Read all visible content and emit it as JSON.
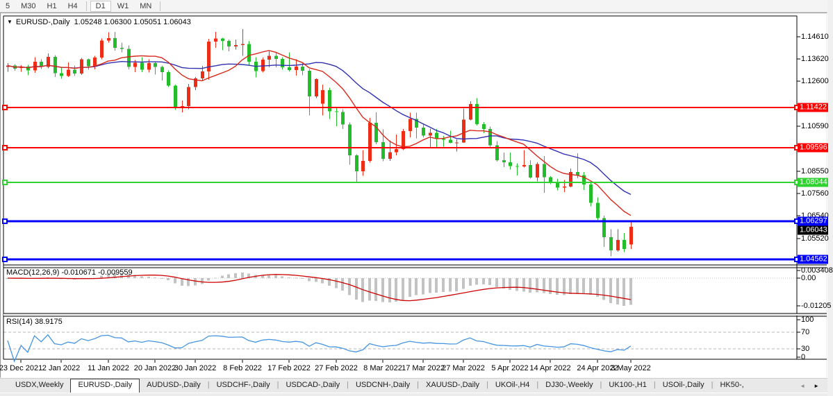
{
  "toolbar": {
    "active": "D1",
    "groups": [
      [
        "5",
        "M30",
        "H1",
        "H4"
      ],
      [
        "D1",
        "W1",
        "MN"
      ]
    ]
  },
  "chart": {
    "caret": "▼",
    "title_symbol": "EURUSD-,Daily",
    "title_ohlc": "1.05248 1.06300 1.05051 1.06043",
    "current_price": "1.06043"
  },
  "chart_data": {
    "type": "candlestick",
    "symbol": "EURUSD",
    "period": "Daily",
    "date_range": [
      "23 Dec 2021",
      "3 May 2022"
    ],
    "price_axis_ticks": [
      "1.14610",
      "1.13620",
      "1.12600",
      "1.10590",
      "1.08550",
      "1.07560",
      "1.06540",
      "1.05520"
    ],
    "x_ticks": [
      {
        "label": "23 Dec 2021",
        "bar": 2
      },
      {
        "label": "2 Jan 2022",
        "bar": 8
      },
      {
        "label": "11 Jan 2022",
        "bar": 15
      },
      {
        "label": "20 Jan 2022",
        "bar": 22
      },
      {
        "label": "30 Jan 2022",
        "bar": 28
      },
      {
        "label": "8 Feb 2022",
        "bar": 35
      },
      {
        "label": "17 Feb 2022",
        "bar": 42
      },
      {
        "label": "27 Feb 2022",
        "bar": 49
      },
      {
        "label": "8 Mar 2022",
        "bar": 56
      },
      {
        "label": "17 Mar 2022",
        "bar": 62
      },
      {
        "label": "27 Mar 2022",
        "bar": 68
      },
      {
        "label": "5 Apr 2022",
        "bar": 75
      },
      {
        "label": "14 Apr 2022",
        "bar": 81
      },
      {
        "label": "24 Apr 2022",
        "bar": 88
      },
      {
        "label": "3 May 2022",
        "bar": 93
      }
    ],
    "candles_ohlc": [
      [
        1.1325,
        1.1342,
        1.1303,
        1.1331
      ],
      [
        1.1331,
        1.1337,
        1.1308,
        1.1318
      ],
      [
        1.1321,
        1.1333,
        1.1304,
        1.1326
      ],
      [
        1.1326,
        1.1334,
        1.1287,
        1.131
      ],
      [
        1.131,
        1.1369,
        1.1299,
        1.1348
      ],
      [
        1.1348,
        1.136,
        1.1316,
        1.1325
      ],
      [
        1.1325,
        1.1386,
        1.1319,
        1.137
      ],
      [
        1.137,
        1.1379,
        1.1279,
        1.1297
      ],
      [
        1.1297,
        1.1323,
        1.1272,
        1.1285
      ],
      [
        1.1285,
        1.1346,
        1.128,
        1.1312
      ],
      [
        1.1312,
        1.1332,
        1.1285,
        1.1295
      ],
      [
        1.1295,
        1.1366,
        1.1289,
        1.136
      ],
      [
        1.136,
        1.1363,
        1.1313,
        1.1329
      ],
      [
        1.1329,
        1.1375,
        1.1314,
        1.1367
      ],
      [
        1.1367,
        1.1453,
        1.136,
        1.1444
      ],
      [
        1.1444,
        1.1482,
        1.1435,
        1.1455
      ],
      [
        1.1455,
        1.1483,
        1.1398,
        1.1411
      ],
      [
        1.1411,
        1.1435,
        1.1391,
        1.1406
      ],
      [
        1.1406,
        1.1422,
        1.1314,
        1.1325
      ],
      [
        1.1325,
        1.1357,
        1.1301,
        1.1344
      ],
      [
        1.1344,
        1.1369,
        1.1301,
        1.1312
      ],
      [
        1.1312,
        1.136,
        1.13,
        1.1343
      ],
      [
        1.1343,
        1.1349,
        1.1291,
        1.1325
      ],
      [
        1.1325,
        1.1331,
        1.1264,
        1.1301
      ],
      [
        1.1301,
        1.131,
        1.1234,
        1.124
      ],
      [
        1.124,
        1.1245,
        1.1131,
        1.1144
      ],
      [
        1.1144,
        1.1174,
        1.1121,
        1.1148
      ],
      [
        1.1148,
        1.1248,
        1.1135,
        1.1235
      ],
      [
        1.1235,
        1.1279,
        1.1221,
        1.1273
      ],
      [
        1.1273,
        1.133,
        1.1266,
        1.1305
      ],
      [
        1.1305,
        1.1452,
        1.1267,
        1.144
      ],
      [
        1.144,
        1.1483,
        1.1411,
        1.1454
      ],
      [
        1.1454,
        1.1456,
        1.14,
        1.1443
      ],
      [
        1.1443,
        1.1449,
        1.1396,
        1.1417
      ],
      [
        1.1417,
        1.1448,
        1.1403,
        1.1424
      ],
      [
        1.1424,
        1.1495,
        1.1375,
        1.1428
      ],
      [
        1.1428,
        1.1442,
        1.133,
        1.1348
      ],
      [
        1.1348,
        1.1369,
        1.1278,
        1.1306
      ],
      [
        1.1306,
        1.1368,
        1.13,
        1.1358
      ],
      [
        1.1358,
        1.1395,
        1.1323,
        1.1375
      ],
      [
        1.1375,
        1.1392,
        1.1323,
        1.1361
      ],
      [
        1.1361,
        1.1369,
        1.1312,
        1.1324
      ],
      [
        1.1324,
        1.1391,
        1.1305,
        1.1311
      ],
      [
        1.1311,
        1.1359,
        1.1286,
        1.1327
      ],
      [
        1.1327,
        1.1342,
        1.1287,
        1.1308
      ],
      [
        1.1308,
        1.1315,
        1.1106,
        1.1193
      ],
      [
        1.1193,
        1.1274,
        1.1184,
        1.127
      ],
      [
        1.116,
        1.1246,
        1.1106,
        1.122
      ],
      [
        1.122,
        1.1232,
        1.109,
        1.1125
      ],
      [
        1.1125,
        1.1145,
        1.1058,
        1.1122
      ],
      [
        1.1122,
        1.1135,
        1.1045,
        1.1065
      ],
      [
        1.1065,
        1.1075,
        1.0885,
        1.0926
      ],
      [
        1.0926,
        1.0931,
        1.0806,
        1.0854
      ],
      [
        1.0854,
        1.095,
        1.0834,
        1.0901
      ],
      [
        1.0901,
        1.1095,
        1.0893,
        1.1073
      ],
      [
        1.1073,
        1.1121,
        1.0977,
        1.0986
      ],
      [
        1.0986,
        1.1043,
        1.09,
        1.0911
      ],
      [
        1.0911,
        1.0993,
        1.0901,
        1.0941
      ],
      [
        1.0941,
        1.102,
        1.0926,
        1.0955
      ],
      [
        1.0955,
        1.1046,
        1.095,
        1.1036
      ],
      [
        1.1036,
        1.1119,
        1.1008,
        1.1091
      ],
      [
        1.1091,
        1.1119,
        1.1003,
        1.1051
      ],
      [
        1.1051,
        1.1069,
        1.1008,
        1.1016
      ],
      [
        1.1016,
        1.1047,
        1.0962,
        1.1028
      ],
      [
        1.1028,
        1.1045,
        1.0963,
        1.1002
      ],
      [
        1.1002,
        1.1014,
        1.0966,
        1.0997
      ],
      [
        1.0997,
        1.1038,
        1.0981,
        1.0982
      ],
      [
        1.0982,
        1.0999,
        1.0944,
        1.0984
      ],
      [
        1.0984,
        1.1137,
        1.0982,
        1.1087
      ],
      [
        1.1087,
        1.1171,
        1.1084,
        1.1158
      ],
      [
        1.1158,
        1.1185,
        1.1061,
        1.1067
      ],
      [
        1.1067,
        1.1076,
        1.1027,
        1.1046
      ],
      [
        1.1046,
        1.1056,
        1.096,
        1.0972
      ],
      [
        1.0972,
        1.0991,
        1.0899,
        1.0905
      ],
      [
        1.0905,
        1.0939,
        1.0874,
        1.0895
      ],
      [
        1.0895,
        1.0939,
        1.0862,
        1.0878
      ],
      [
        1.0878,
        1.089,
        1.0836,
        1.0876
      ],
      [
        1.0876,
        1.095,
        1.0872,
        1.0883
      ],
      [
        1.0883,
        1.0904,
        1.0821,
        1.0826
      ],
      [
        1.0826,
        1.0895,
        1.0809,
        1.0887
      ],
      [
        1.0887,
        1.0924,
        1.0757,
        1.0828
      ],
      [
        1.0828,
        1.0832,
        1.0796,
        1.0807
      ],
      [
        1.0807,
        1.0822,
        1.0769,
        1.0781
      ],
      [
        1.0781,
        1.0815,
        1.0761,
        1.0786
      ],
      [
        1.0786,
        1.0867,
        1.0783,
        1.0852
      ],
      [
        1.0852,
        1.0936,
        1.0824,
        1.0838
      ],
      [
        1.0838,
        1.0852,
        1.077,
        1.0795
      ],
      [
        1.0795,
        1.0804,
        1.0697,
        1.0713
      ],
      [
        1.0713,
        1.0738,
        1.0635,
        1.0644
      ],
      [
        1.0644,
        1.0655,
        1.0514,
        1.0558
      ],
      [
        1.0558,
        1.0594,
        1.0472,
        1.0498
      ],
      [
        1.0498,
        1.0593,
        1.0492,
        1.0545
      ],
      [
        1.0545,
        1.0577,
        1.049,
        1.0505
      ],
      [
        1.05248,
        1.063,
        1.05051,
        1.06043
      ]
    ],
    "hlines": [
      {
        "label": "1.11422",
        "price": 1.11422,
        "color": "#ff0000",
        "width": 2
      },
      {
        "label": "1.09596",
        "price": 1.09596,
        "color": "#ff0000",
        "width": 2
      },
      {
        "label": "1.08044",
        "price": 1.08044,
        "color": "#2fd32f",
        "width": 2
      },
      {
        "label": "1.06297",
        "price": 1.06297,
        "color": "#0000ff",
        "width": 3
      },
      {
        "label": "1.04562",
        "price": 1.04562,
        "color": "#0000ff",
        "width": 3
      }
    ],
    "moving_averages": [
      {
        "name": "slow-ma",
        "period": 20,
        "color": "#3030b0"
      },
      {
        "name": "fast-ma",
        "period": 10,
        "color": "#d8281a"
      }
    ],
    "macd": {
      "label": "MACD(12,26,9) -0.010671 -0.009559",
      "fast": 12,
      "slow": 26,
      "signal_period": 9,
      "value": -0.010671,
      "signal_value": -0.009559,
      "axis": [
        {
          "label": "0.003408",
          "value": 0.003408
        },
        {
          "label": "0.00",
          "value": 0
        },
        {
          "label": "-0.01205",
          "value": -0.01205
        }
      ]
    },
    "rsi": {
      "label": "RSI(14) 38.9175",
      "period": 14,
      "value": 38.9175,
      "levels": [
        70,
        30
      ],
      "axis": [
        {
          "label": "100",
          "value": 100
        },
        {
          "label": "70",
          "value": 70
        },
        {
          "label": "30",
          "value": 30
        },
        {
          "label": "0",
          "value": 0
        }
      ]
    }
  },
  "colors": {
    "candle_up": "#ee2d16",
    "candle_down": "#23bd2c",
    "macd_hist": "#c3c3c3",
    "macd_signal": "#cc0000",
    "rsi_line": "#4494e4",
    "current_tag_bg": "#000000",
    "tag_text": "#ffffff"
  },
  "tabs": {
    "separator": "|",
    "scroll_left": "◄",
    "scroll_right": "►",
    "items": [
      {
        "label": "USDX,Weekly",
        "active": false
      },
      {
        "label": "EURUSD-,Daily",
        "active": true
      },
      {
        "label": "AUDUSD-,Daily",
        "active": false
      },
      {
        "label": "USDCHF-,Daily",
        "active": false
      },
      {
        "label": "USDCAD-,Daily",
        "active": false
      },
      {
        "label": "USDCNH-,Daily",
        "active": false
      },
      {
        "label": "XAUUSD-,Daily",
        "active": false
      },
      {
        "label": "UKOil-,H4",
        "active": false
      },
      {
        "label": "DJ30-,Weekly",
        "active": false
      },
      {
        "label": "UK100-,H1",
        "active": false
      },
      {
        "label": "USOil-,Daily",
        "active": false
      },
      {
        "label": "HK50-,",
        "active": false
      }
    ]
  }
}
